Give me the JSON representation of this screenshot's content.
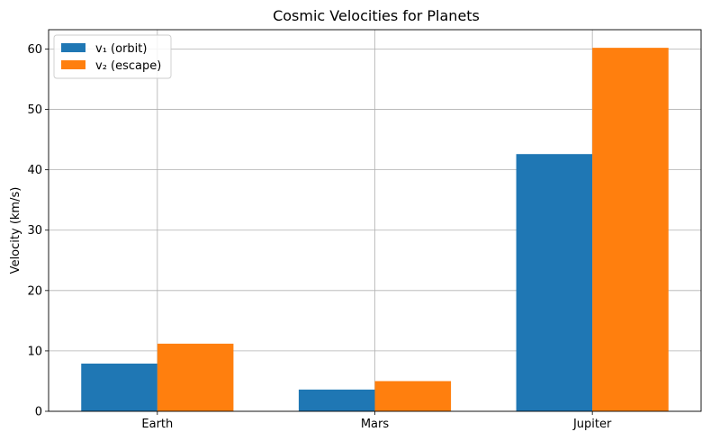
{
  "chart_data": {
    "type": "bar",
    "title": "Cosmic Velocities for Planets",
    "xlabel": "",
    "ylabel": "Velocity (km/s)",
    "categories": [
      "Earth",
      "Mars",
      "Jupiter"
    ],
    "series": [
      {
        "name": "v₁ (orbit)",
        "values": [
          7.9,
          3.6,
          42.6
        ],
        "color": "#1f77b4"
      },
      {
        "name": "v₂ (escape)",
        "values": [
          11.2,
          5.0,
          60.2
        ],
        "color": "#ff7f0e"
      }
    ],
    "ylim": [
      0,
      63.2
    ],
    "yticks": [
      "0",
      "10",
      "20",
      "30",
      "40",
      "50",
      "60"
    ],
    "grid": true,
    "legend_position": "top-left"
  }
}
